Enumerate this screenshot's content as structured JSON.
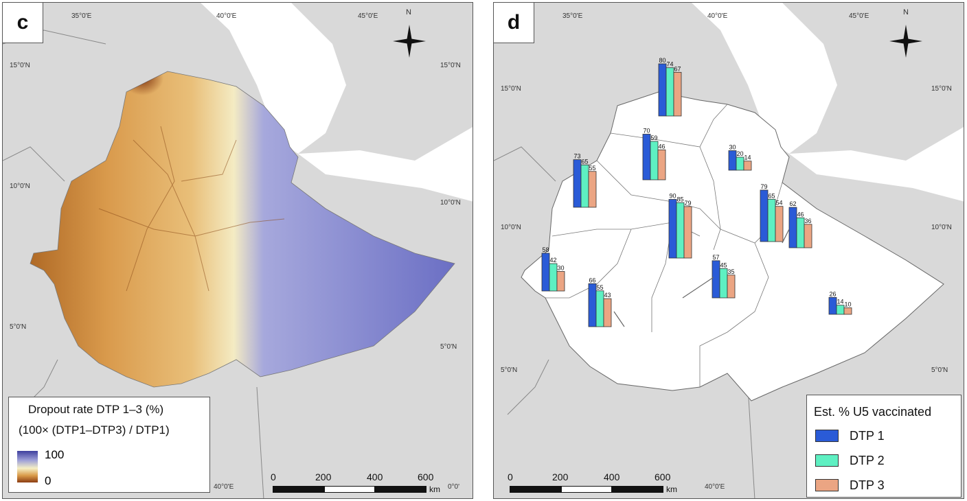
{
  "panel_c": {
    "letter": "c",
    "legend": {
      "title": "Dropout rate DTP 1–3 (%)",
      "subtitle": "(100× (DTP1–DTP3) / DTP1)",
      "max_label": "100",
      "min_label": "0"
    },
    "coords": {
      "top_lon_1": "35°0'E",
      "top_lon_2": "40°0'E",
      "top_lon_3": "45°0'E",
      "left_lat_1": "15°0'N",
      "left_lat_2": "10°0'N",
      "left_lat_3": "5°0'N",
      "right_lat_1": "15°0'N",
      "right_lat_2": "10°0'N",
      "right_lat_3": "5°0'N",
      "bottom_lon_1": "40°0'E",
      "bottom_corner": "0°0'"
    },
    "scale": {
      "ticks": [
        "0",
        "200",
        "400",
        "600"
      ],
      "unit": "km"
    },
    "north_label": "N"
  },
  "panel_d": {
    "letter": "d",
    "legend": {
      "title": "Est. % U5 vaccinated",
      "items": [
        {
          "label": "DTP 1",
          "color": "#2a5bd7"
        },
        {
          "label": "DTP 2",
          "color": "#5ef0c2"
        },
        {
          "label": "DTP 3",
          "color": "#eba583"
        }
      ]
    },
    "coords": {
      "top_lon_1": "35°0'E",
      "top_lon_2": "40°0'E",
      "top_lon_3": "45°0'E",
      "left_lat_1": "15°0'N",
      "left_lat_2": "10°0'N",
      "left_lat_3": "5°0'N",
      "right_lat_1": "15°0'N",
      "right_lat_2": "10°0'N",
      "right_lat_3": "5°0'N",
      "bottom_lon_1": "40°0'E"
    },
    "scale": {
      "ticks": [
        "0",
        "200",
        "400",
        "600"
      ],
      "unit": "km"
    },
    "north_label": "N",
    "region_bars": [
      {
        "values": [
          80,
          74,
          67
        ]
      },
      {
        "values": [
          70,
          59,
          46
        ]
      },
      {
        "values": [
          73,
          65,
          55
        ]
      },
      {
        "values": [
          30,
          20,
          14
        ]
      },
      {
        "values": [
          90,
          85,
          79
        ]
      },
      {
        "values": [
          79,
          65,
          54
        ]
      },
      {
        "values": [
          62,
          46,
          36
        ]
      },
      {
        "values": [
          57,
          45,
          35
        ]
      },
      {
        "values": [
          58,
          42,
          30
        ]
      },
      {
        "values": [
          66,
          55,
          43
        ]
      },
      {
        "values": [
          26,
          14,
          10
        ]
      }
    ]
  }
}
